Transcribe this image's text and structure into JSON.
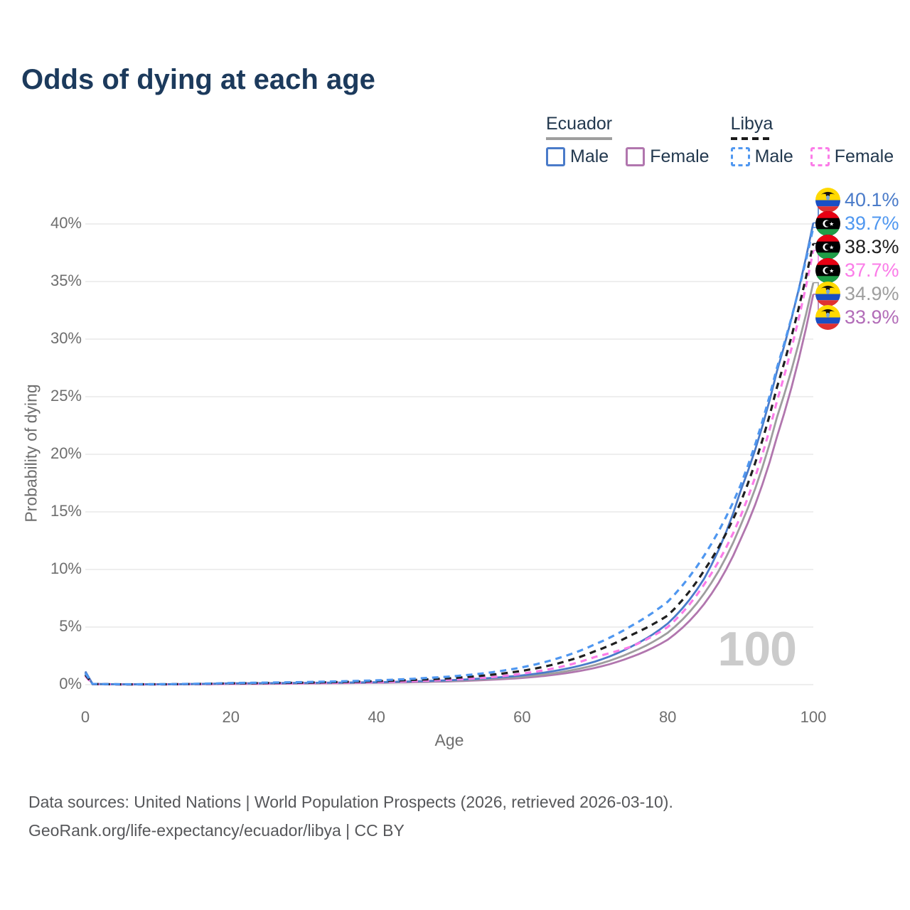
{
  "title": "Odds of dying at each age",
  "legend": {
    "groups": [
      {
        "country": "Ecuador",
        "line_style": "solid",
        "underline_color": "#9e9e9e",
        "items": [
          {
            "label": "Male",
            "color": "#4a7bc9"
          },
          {
            "label": "Female",
            "color": "#b176ae"
          }
        ]
      },
      {
        "country": "Libya",
        "line_style": "dashed",
        "underline_color": "#1a1a1a",
        "items": [
          {
            "label": "Male",
            "color": "#4f97f0"
          },
          {
            "label": "Female",
            "color": "#fb7ce8"
          }
        ]
      }
    ]
  },
  "watermark": "100",
  "footer": {
    "line1": "Data sources: United Nations | World Population Prospects (2026, retrieved 2026-03-10).",
    "line2": "GeoRank.org/life-expectancy/ecuador/libya | CC BY"
  },
  "chart_data": {
    "type": "line",
    "title": "Odds of dying at each age",
    "xlabel": "Age",
    "ylabel": "Probability of dying",
    "xlim": [
      0,
      100
    ],
    "ylim": [
      0,
      42
    ],
    "xticks": [
      0,
      20,
      40,
      60,
      80,
      100
    ],
    "yticks": [
      0,
      5,
      10,
      15,
      20,
      25,
      30,
      35,
      40
    ],
    "ytick_suffix": "%",
    "grid": "horizontal",
    "legend_position": "top-right",
    "hover_age": "100",
    "series": [
      {
        "id": "ecuador-male",
        "name": "Ecuador Male",
        "country": "Ecuador",
        "sex": "Male",
        "color": "#4a7bc9",
        "label_color": "#4a7bc9",
        "dash": "solid",
        "flag": "ecuador",
        "end_label": "40.1%",
        "label_row": 0,
        "points": {
          "0": 1.15,
          "1": 0.06,
          "5": 0.03,
          "10": 0.03,
          "15": 0.06,
          "20": 0.11,
          "30": 0.15,
          "40": 0.21,
          "50": 0.38,
          "55": 0.55,
          "60": 0.8,
          "65": 1.25,
          "70": 2.0,
          "75": 3.3,
          "80": 5.3,
          "85": 9.2,
          "90": 16.8,
          "95": 27.2,
          "100": 40.1
        }
      },
      {
        "id": "libya-male",
        "name": "Libya Male",
        "country": "Libya",
        "sex": "Male",
        "color": "#4f97f0",
        "label_color": "#4f97f0",
        "dash": "dashed",
        "flag": "libya",
        "end_label": "39.7%",
        "label_row": 1,
        "points": {
          "0": 1.0,
          "1": 0.06,
          "5": 0.03,
          "10": 0.035,
          "15": 0.07,
          "20": 0.14,
          "30": 0.22,
          "40": 0.37,
          "50": 0.7,
          "55": 1.0,
          "60": 1.5,
          "65": 2.3,
          "70": 3.5,
          "75": 5.1,
          "80": 7.2,
          "85": 11.2,
          "90": 17.3,
          "95": 27.5,
          "100": 39.7
        }
      },
      {
        "id": "libya-both",
        "name": "Libya (both sexes)",
        "country": "Libya",
        "sex": "All",
        "color": "#1f1f1f",
        "label_color": "#1f1f1f",
        "dash": "dashed",
        "flag": "libya",
        "end_label": "38.3%",
        "label_row": 2,
        "points": {
          "0": 0.85,
          "1": 0.05,
          "5": 0.025,
          "10": 0.03,
          "15": 0.055,
          "20": 0.11,
          "30": 0.17,
          "40": 0.3,
          "50": 0.55,
          "55": 0.8,
          "60": 1.2,
          "65": 1.85,
          "70": 2.9,
          "75": 4.3,
          "80": 6.0,
          "85": 9.9,
          "90": 15.8,
          "95": 25.8,
          "100": 38.3
        }
      },
      {
        "id": "libya-female",
        "name": "Libya Female",
        "country": "Libya",
        "sex": "Female",
        "color": "#fb7ce8",
        "label_color": "#fb7ce8",
        "dash": "dashed",
        "flag": "libya",
        "end_label": "37.7%",
        "label_row": 3,
        "points": {
          "0": 0.75,
          "1": 0.045,
          "5": 0.02,
          "10": 0.025,
          "15": 0.04,
          "20": 0.07,
          "30": 0.12,
          "40": 0.22,
          "50": 0.42,
          "55": 0.6,
          "60": 0.95,
          "65": 1.5,
          "70": 2.4,
          "75": 3.3,
          "80": 5.0,
          "85": 8.7,
          "90": 14.6,
          "95": 24.6,
          "100": 37.7
        }
      },
      {
        "id": "ecuador-both",
        "name": "Ecuador (both sexes)",
        "country": "Ecuador",
        "sex": "All",
        "color": "#9e9e9e",
        "label_color": "#9e9e9e",
        "dash": "solid",
        "flag": "ecuador",
        "end_label": "34.9%",
        "label_row": 4,
        "points": {
          "0": 1.05,
          "1": 0.055,
          "5": 0.025,
          "10": 0.028,
          "15": 0.05,
          "20": 0.09,
          "30": 0.13,
          "40": 0.19,
          "50": 0.33,
          "55": 0.47,
          "60": 0.68,
          "65": 1.05,
          "70": 1.7,
          "75": 2.8,
          "80": 4.5,
          "85": 7.9,
          "90": 13.8,
          "95": 23.2,
          "100": 34.9
        }
      },
      {
        "id": "ecuador-female",
        "name": "Ecuador Female",
        "country": "Ecuador",
        "sex": "Female",
        "color": "#b176ae",
        "label_color": "#b26cb8",
        "dash": "solid",
        "flag": "ecuador",
        "end_label": "33.9%",
        "label_row": 5,
        "points": {
          "0": 0.95,
          "1": 0.05,
          "5": 0.02,
          "10": 0.022,
          "15": 0.035,
          "20": 0.06,
          "30": 0.1,
          "40": 0.16,
          "50": 0.28,
          "55": 0.4,
          "60": 0.58,
          "65": 0.9,
          "70": 1.45,
          "75": 2.4,
          "80": 3.9,
          "85": 7.0,
          "90": 12.6,
          "95": 21.5,
          "100": 33.9
        }
      }
    ]
  }
}
